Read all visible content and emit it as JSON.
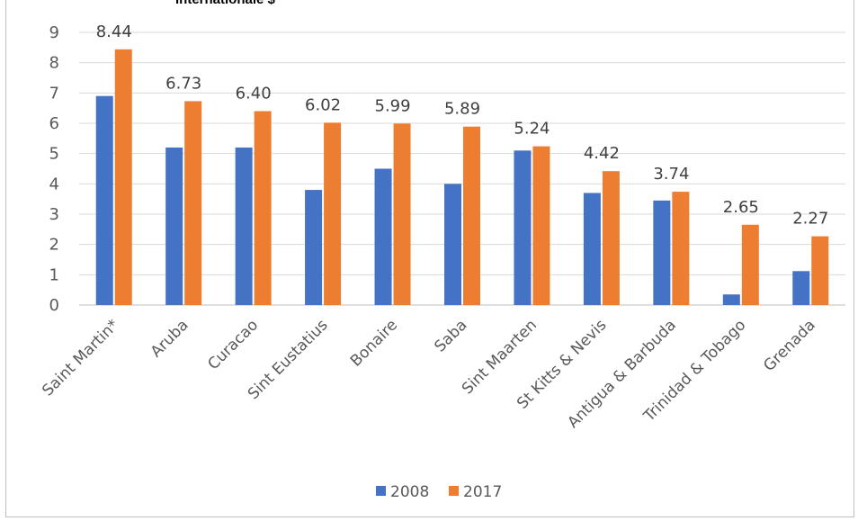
{
  "chart_data": {
    "type": "bar",
    "title": "Internationale $",
    "categories": [
      "Saint Martin*",
      "Aruba",
      "Curacao",
      "Sint Eustatius",
      "Bonaire",
      "Saba",
      "Sint Maarten",
      "St Kitts & Nevis",
      "Antigua & Barbuda",
      "Trinidad & Tobago",
      "Grenada"
    ],
    "series": [
      {
        "name": "2008",
        "color": "#4472C4",
        "values": [
          6.9,
          5.2,
          5.2,
          3.8,
          4.5,
          4.0,
          5.1,
          3.7,
          3.45,
          0.35,
          1.12
        ]
      },
      {
        "name": "2017",
        "color": "#ED7D31",
        "values": [
          8.44,
          6.73,
          6.4,
          6.02,
          5.99,
          5.89,
          5.24,
          4.42,
          3.74,
          2.65,
          2.27
        ],
        "labels": [
          "8.44",
          "6.73",
          "6.40",
          "6.02",
          "5.99",
          "5.89",
          "5.24",
          "4.42",
          "3.74",
          "2.65",
          "2.27"
        ]
      }
    ],
    "ylim": [
      0,
      9
    ],
    "yticks": [
      "0",
      "1",
      "2",
      "3",
      "4",
      "5",
      "6",
      "7",
      "8",
      "9"
    ],
    "grid": true,
    "legend": "bottom"
  }
}
